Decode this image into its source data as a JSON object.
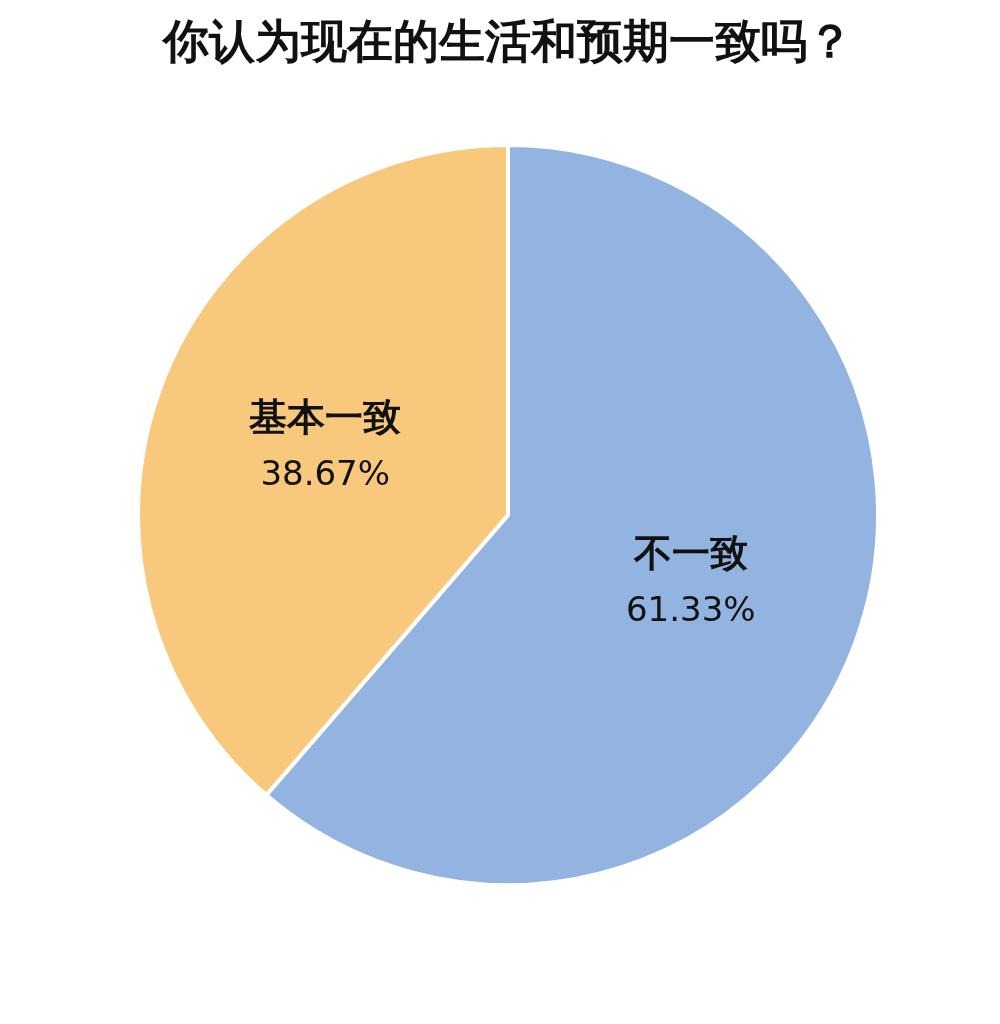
{
  "chart_data": {
    "type": "pie",
    "title": "你认为现在的生活和预期一致吗？",
    "categories": [
      "不一致",
      "基本一致"
    ],
    "values": [
      61.33,
      38.67
    ],
    "colors": [
      "#93b4e0",
      "#f8c97c"
    ],
    "value_labels": [
      "61.33%",
      "38.67%"
    ],
    "legend": false
  }
}
